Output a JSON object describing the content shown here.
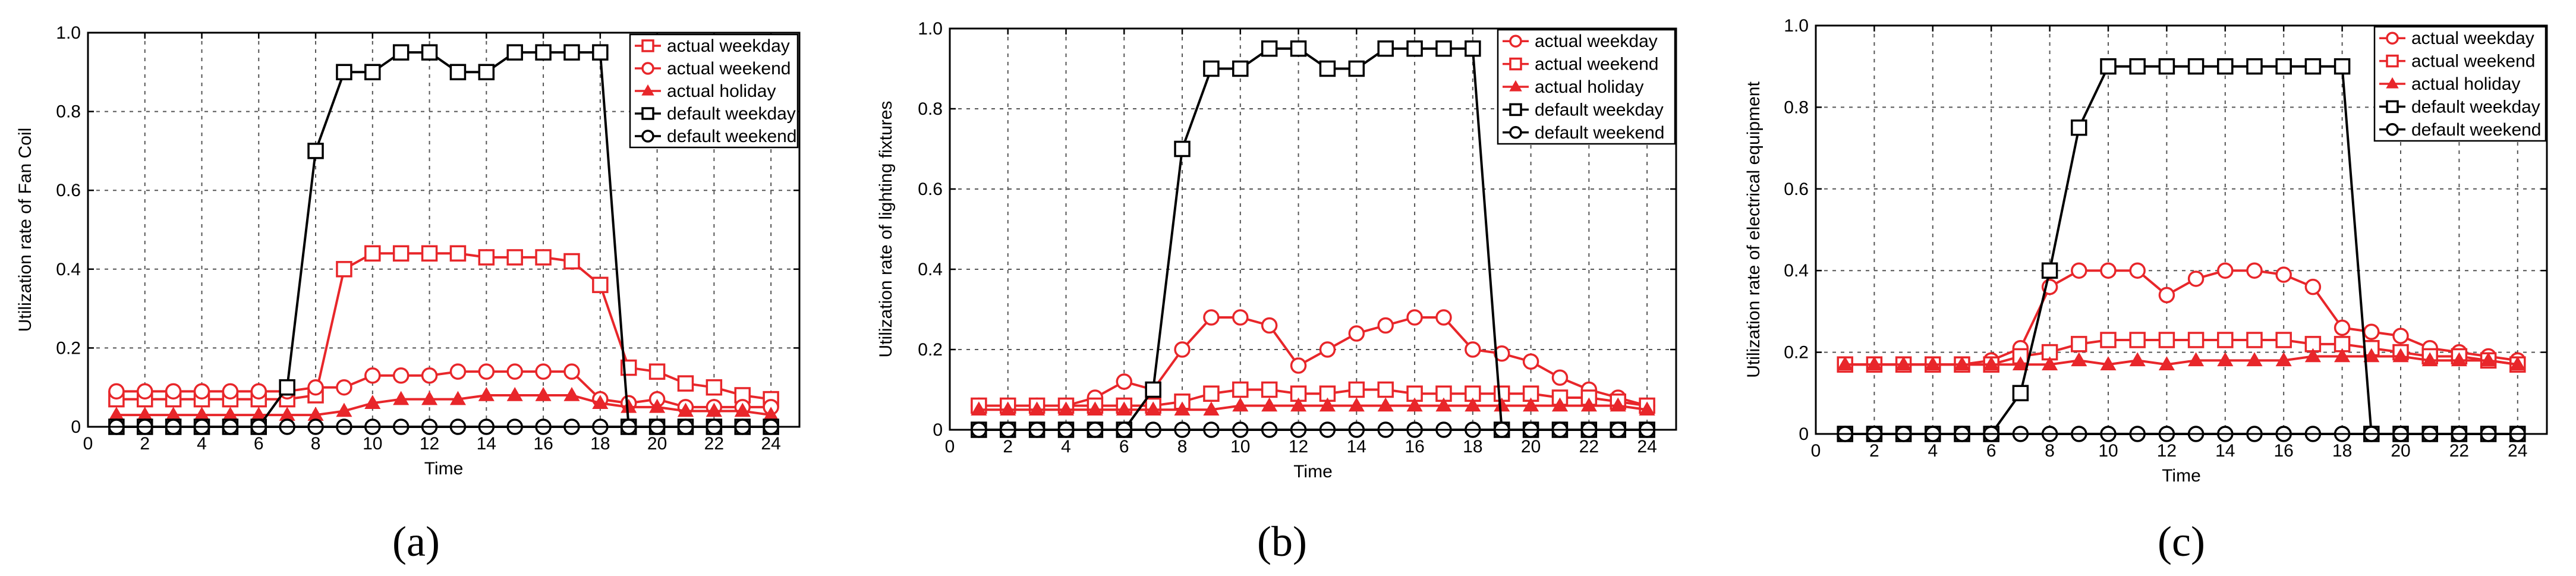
{
  "colors": {
    "actual": "#e8262a",
    "default": "#000000"
  },
  "chart_data": [
    {
      "type": "line",
      "panel_label": "(a)",
      "xlabel": "Time",
      "ylabel": "Utilization rate of Fan Coil",
      "xlim": [
        0,
        25
      ],
      "ylim": [
        0,
        1.0
      ],
      "xticks": [
        0,
        2,
        4,
        6,
        8,
        10,
        12,
        14,
        16,
        18,
        20,
        22,
        24
      ],
      "yticks": [
        0,
        0.2,
        0.4,
        0.6,
        0.8,
        1.0
      ],
      "ytick_labels": [
        "0",
        "0.2",
        "0.4",
        "0.6",
        "0.8",
        "1.0"
      ],
      "grid": true,
      "legend_position": "top-right",
      "series": [
        {
          "name": "actual weekday",
          "color": "#e8262a",
          "marker": "square",
          "x": [
            1,
            2,
            3,
            4,
            5,
            6,
            7,
            8,
            9,
            10,
            11,
            12,
            13,
            14,
            15,
            16,
            17,
            18,
            19,
            20,
            21,
            22,
            23,
            24
          ],
          "y": [
            0.07,
            0.07,
            0.07,
            0.07,
            0.07,
            0.07,
            0.07,
            0.08,
            0.4,
            0.44,
            0.44,
            0.44,
            0.44,
            0.43,
            0.43,
            0.43,
            0.42,
            0.36,
            0.15,
            0.14,
            0.11,
            0.1,
            0.08,
            0.07
          ]
        },
        {
          "name": "actual weekend",
          "color": "#e8262a",
          "marker": "circle",
          "x": [
            1,
            2,
            3,
            4,
            5,
            6,
            7,
            8,
            9,
            10,
            11,
            12,
            13,
            14,
            15,
            16,
            17,
            18,
            19,
            20,
            21,
            22,
            23,
            24
          ],
          "y": [
            0.09,
            0.09,
            0.09,
            0.09,
            0.09,
            0.09,
            0.09,
            0.1,
            0.1,
            0.13,
            0.13,
            0.13,
            0.14,
            0.14,
            0.14,
            0.14,
            0.14,
            0.07,
            0.06,
            0.07,
            0.05,
            0.05,
            0.05,
            0.05
          ]
        },
        {
          "name": "actual holiday",
          "color": "#e8262a",
          "marker": "triangle",
          "x": [
            1,
            2,
            3,
            4,
            5,
            6,
            7,
            8,
            9,
            10,
            11,
            12,
            13,
            14,
            15,
            16,
            17,
            18,
            19,
            20,
            21,
            22,
            23,
            24
          ],
          "y": [
            0.03,
            0.03,
            0.03,
            0.03,
            0.03,
            0.03,
            0.03,
            0.03,
            0.04,
            0.06,
            0.07,
            0.07,
            0.07,
            0.08,
            0.08,
            0.08,
            0.08,
            0.06,
            0.05,
            0.05,
            0.04,
            0.04,
            0.04,
            0.03
          ]
        },
        {
          "name": "default weekday",
          "color": "#000000",
          "marker": "square",
          "x": [
            1,
            2,
            3,
            4,
            5,
            6,
            7,
            8,
            9,
            10,
            11,
            12,
            13,
            14,
            15,
            16,
            17,
            18,
            19,
            20,
            21,
            22,
            23,
            24
          ],
          "y": [
            0,
            0,
            0,
            0,
            0,
            0,
            0.1,
            0.7,
            0.9,
            0.9,
            0.95,
            0.95,
            0.9,
            0.9,
            0.95,
            0.95,
            0.95,
            0.95,
            0,
            0,
            0,
            0,
            0,
            0
          ]
        },
        {
          "name": "default weekend",
          "color": "#000000",
          "marker": "circle",
          "x": [
            1,
            2,
            3,
            4,
            5,
            6,
            7,
            8,
            9,
            10,
            11,
            12,
            13,
            14,
            15,
            16,
            17,
            18,
            19,
            20,
            21,
            22,
            23,
            24
          ],
          "y": [
            0,
            0,
            0,
            0,
            0,
            0,
            0,
            0,
            0,
            0,
            0,
            0,
            0,
            0,
            0,
            0,
            0,
            0,
            0,
            0,
            0,
            0,
            0,
            0
          ]
        }
      ]
    },
    {
      "type": "line",
      "panel_label": "(b)",
      "xlabel": "Time",
      "ylabel": "Utilization rate of lighting fixtures",
      "xlim": [
        0,
        25
      ],
      "ylim": [
        0,
        1.0
      ],
      "xticks": [
        0,
        2,
        4,
        6,
        8,
        10,
        12,
        14,
        16,
        18,
        20,
        22,
        24
      ],
      "yticks": [
        0,
        0.2,
        0.4,
        0.6,
        0.8,
        1.0
      ],
      "ytick_labels": [
        "0",
        "0.2",
        "0.4",
        "0.6",
        "0.8",
        "1.0"
      ],
      "grid": true,
      "legend_position": "top-right",
      "series": [
        {
          "name": "actual weekday",
          "color": "#e8262a",
          "marker": "circle",
          "x": [
            1,
            2,
            3,
            4,
            5,
            6,
            7,
            8,
            9,
            10,
            11,
            12,
            13,
            14,
            15,
            16,
            17,
            18,
            19,
            20,
            21,
            22,
            23,
            24
          ],
          "y": [
            0.06,
            0.06,
            0.06,
            0.06,
            0.08,
            0.12,
            0.1,
            0.2,
            0.28,
            0.28,
            0.26,
            0.16,
            0.2,
            0.24,
            0.26,
            0.28,
            0.28,
            0.2,
            0.19,
            0.17,
            0.13,
            0.1,
            0.08,
            0.06
          ]
        },
        {
          "name": "actual weekend",
          "color": "#e8262a",
          "marker": "square",
          "x": [
            1,
            2,
            3,
            4,
            5,
            6,
            7,
            8,
            9,
            10,
            11,
            12,
            13,
            14,
            15,
            16,
            17,
            18,
            19,
            20,
            21,
            22,
            23,
            24
          ],
          "y": [
            0.06,
            0.06,
            0.06,
            0.06,
            0.06,
            0.06,
            0.06,
            0.07,
            0.09,
            0.1,
            0.1,
            0.09,
            0.09,
            0.1,
            0.1,
            0.09,
            0.09,
            0.09,
            0.09,
            0.09,
            0.08,
            0.08,
            0.07,
            0.06
          ]
        },
        {
          "name": "actual holiday",
          "color": "#e8262a",
          "marker": "triangle",
          "x": [
            1,
            2,
            3,
            4,
            5,
            6,
            7,
            8,
            9,
            10,
            11,
            12,
            13,
            14,
            15,
            16,
            17,
            18,
            19,
            20,
            21,
            22,
            23,
            24
          ],
          "y": [
            0.05,
            0.05,
            0.05,
            0.05,
            0.05,
            0.05,
            0.05,
            0.05,
            0.05,
            0.06,
            0.06,
            0.06,
            0.06,
            0.06,
            0.06,
            0.06,
            0.06,
            0.06,
            0.06,
            0.06,
            0.06,
            0.06,
            0.06,
            0.05
          ]
        },
        {
          "name": "default weekday",
          "color": "#000000",
          "marker": "square",
          "x": [
            1,
            2,
            3,
            4,
            5,
            6,
            7,
            8,
            9,
            10,
            11,
            12,
            13,
            14,
            15,
            16,
            17,
            18,
            19,
            20,
            21,
            22,
            23,
            24
          ],
          "y": [
            0,
            0,
            0,
            0,
            0,
            0,
            0.1,
            0.7,
            0.9,
            0.9,
            0.95,
            0.95,
            0.9,
            0.9,
            0.95,
            0.95,
            0.95,
            0.95,
            0,
            0,
            0,
            0,
            0,
            0
          ]
        },
        {
          "name": "default weekend",
          "color": "#000000",
          "marker": "circle",
          "x": [
            1,
            2,
            3,
            4,
            5,
            6,
            7,
            8,
            9,
            10,
            11,
            12,
            13,
            14,
            15,
            16,
            17,
            18,
            19,
            20,
            21,
            22,
            23,
            24
          ],
          "y": [
            0,
            0,
            0,
            0,
            0,
            0,
            0,
            0,
            0,
            0,
            0,
            0,
            0,
            0,
            0,
            0,
            0,
            0,
            0,
            0,
            0,
            0,
            0,
            0
          ]
        }
      ]
    },
    {
      "type": "line",
      "panel_label": "(c)",
      "xlabel": "Time",
      "ylabel": "Utilization rate of  electrical equipment",
      "xlim": [
        0,
        25
      ],
      "ylim": [
        0,
        1.0
      ],
      "xticks": [
        0,
        2,
        4,
        6,
        8,
        10,
        12,
        14,
        16,
        18,
        20,
        22,
        24
      ],
      "yticks": [
        0,
        0.2,
        0.4,
        0.6,
        0.8,
        1.0
      ],
      "ytick_labels": [
        "0",
        "0.2",
        "0.4",
        "0.6",
        "0.8",
        "1.0"
      ],
      "grid": true,
      "legend_position": "top-right",
      "series": [
        {
          "name": "actual weekday",
          "color": "#e8262a",
          "marker": "circle",
          "x": [
            1,
            2,
            3,
            4,
            5,
            6,
            7,
            8,
            9,
            10,
            11,
            12,
            13,
            14,
            15,
            16,
            17,
            18,
            19,
            20,
            21,
            22,
            23,
            24
          ],
          "y": [
            0.17,
            0.17,
            0.17,
            0.17,
            0.17,
            0.18,
            0.21,
            0.36,
            0.4,
            0.4,
            0.4,
            0.34,
            0.38,
            0.4,
            0.4,
            0.39,
            0.36,
            0.26,
            0.25,
            0.24,
            0.21,
            0.2,
            0.19,
            0.18
          ]
        },
        {
          "name": "actual weekend",
          "color": "#e8262a",
          "marker": "square",
          "x": [
            1,
            2,
            3,
            4,
            5,
            6,
            7,
            8,
            9,
            10,
            11,
            12,
            13,
            14,
            15,
            16,
            17,
            18,
            19,
            20,
            21,
            22,
            23,
            24
          ],
          "y": [
            0.17,
            0.17,
            0.17,
            0.17,
            0.17,
            0.17,
            0.19,
            0.2,
            0.22,
            0.23,
            0.23,
            0.23,
            0.23,
            0.23,
            0.23,
            0.23,
            0.22,
            0.22,
            0.21,
            0.2,
            0.19,
            0.19,
            0.18,
            0.17
          ]
        },
        {
          "name": "actual holiday",
          "color": "#e8262a",
          "marker": "triangle",
          "x": [
            1,
            2,
            3,
            4,
            5,
            6,
            7,
            8,
            9,
            10,
            11,
            12,
            13,
            14,
            15,
            16,
            17,
            18,
            19,
            20,
            21,
            22,
            23,
            24
          ],
          "y": [
            0.17,
            0.17,
            0.17,
            0.17,
            0.17,
            0.17,
            0.17,
            0.17,
            0.18,
            0.17,
            0.18,
            0.17,
            0.18,
            0.18,
            0.18,
            0.18,
            0.19,
            0.19,
            0.19,
            0.19,
            0.18,
            0.18,
            0.18,
            0.17
          ]
        },
        {
          "name": "default weekday",
          "color": "#000000",
          "marker": "square",
          "x": [
            1,
            2,
            3,
            4,
            5,
            6,
            7,
            8,
            9,
            10,
            11,
            12,
            13,
            14,
            15,
            16,
            17,
            18,
            19,
            20,
            21,
            22,
            23,
            24
          ],
          "y": [
            0,
            0,
            0,
            0,
            0,
            0,
            0.1,
            0.4,
            0.75,
            0.9,
            0.9,
            0.9,
            0.9,
            0.9,
            0.9,
            0.9,
            0.9,
            0.9,
            0,
            0,
            0,
            0,
            0,
            0
          ]
        },
        {
          "name": "default weekend",
          "color": "#000000",
          "marker": "circle",
          "x": [
            1,
            2,
            3,
            4,
            5,
            6,
            7,
            8,
            9,
            10,
            11,
            12,
            13,
            14,
            15,
            16,
            17,
            18,
            19,
            20,
            21,
            22,
            23,
            24
          ],
          "y": [
            0,
            0,
            0,
            0,
            0,
            0,
            0,
            0,
            0,
            0,
            0,
            0,
            0,
            0,
            0,
            0,
            0,
            0,
            0,
            0,
            0,
            0,
            0,
            0
          ]
        }
      ]
    }
  ]
}
